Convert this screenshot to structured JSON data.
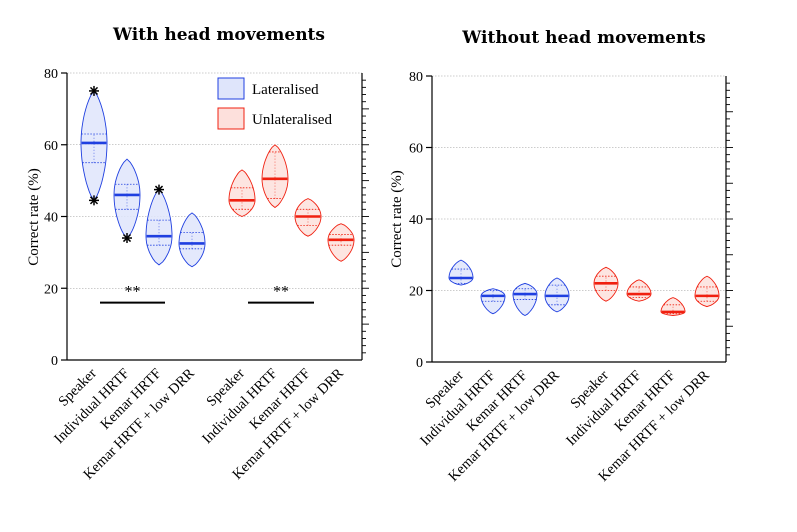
{
  "chart_data": [
    {
      "type": "violin",
      "title": "With head movements",
      "ylabel": "Correct rate (%)",
      "ylim": [
        0,
        80
      ],
      "yticks": [
        0,
        20,
        40,
        60,
        80
      ],
      "grid": "horizontal dotted",
      "legend": {
        "placement": "top-right",
        "entries": [
          "Lateralised",
          "Unlateralised"
        ]
      },
      "categories": [
        "Speaker",
        "Individual HRTF",
        "Kemar HRTF",
        "Kemar HRTF + low DRR",
        "Speaker",
        "Individual HRTF",
        "Kemar HRTF",
        "Kemar HRTF + low DRR"
      ],
      "series": [
        {
          "name": "Lateralised",
          "color": "#1f3fe0",
          "fill": "#dfe5fb",
          "groups": [
            {
              "median": 60.5,
              "q1": 55,
              "q3": 63,
              "min": 44.5,
              "max": 75,
              "outliers": [
                75,
                44.5
              ]
            },
            {
              "median": 46,
              "q1": 42,
              "q3": 49,
              "min": 34,
              "max": 56,
              "outliers": [
                34
              ]
            },
            {
              "median": 34.5,
              "q1": 32,
              "q3": 39,
              "min": 26.5,
              "max": 47.5,
              "outliers": [
                47.5
              ]
            },
            {
              "median": 32.5,
              "q1": 31,
              "q3": 35.5,
              "min": 26,
              "max": 41,
              "outliers": []
            }
          ]
        },
        {
          "name": "Unlateralised",
          "color": "#f02010",
          "fill": "#fde0dc",
          "groups": [
            {
              "median": 44.5,
              "q1": 42,
              "q3": 48,
              "min": 40,
              "max": 53,
              "outliers": []
            },
            {
              "median": 50.5,
              "q1": 45,
              "q3": 58,
              "min": 42.5,
              "max": 60,
              "outliers": []
            },
            {
              "median": 40,
              "q1": 37.5,
              "q3": 42,
              "min": 34.5,
              "max": 45,
              "outliers": []
            },
            {
              "median": 33.5,
              "q1": 32,
              "q3": 35,
              "min": 27.5,
              "max": 38,
              "outliers": []
            }
          ]
        }
      ],
      "annotations": [
        {
          "text": "**",
          "between": [
            "Speaker",
            "Kemar HRTF"
          ],
          "group": "Lateralised",
          "y": 16
        },
        {
          "text": "**",
          "between": [
            "Speaker",
            "Kemar HRTF"
          ],
          "group": "Unlateralised",
          "y": 16
        }
      ]
    },
    {
      "type": "violin",
      "title": "Without head movements",
      "ylabel": "Correct rate (%)",
      "ylim": [
        0,
        80
      ],
      "yticks": [
        0,
        20,
        40,
        60,
        80
      ],
      "grid": "horizontal dotted",
      "categories": [
        "Speaker",
        "Individual HRTF",
        "Kemar HRTF",
        "Kemar HRTF + low DRR",
        "Speaker",
        "Individual HRTF",
        "Kemar HRTF",
        "Kemar HRTF + low DRR"
      ],
      "series": [
        {
          "name": "Lateralised",
          "color": "#1f3fe0",
          "fill": "#dfe5fb",
          "groups": [
            {
              "median": 23.5,
              "q1": 22,
              "q3": 26,
              "min": 21.5,
              "max": 28.5,
              "outliers": []
            },
            {
              "median": 18.5,
              "q1": 17,
              "q3": 20,
              "min": 13.5,
              "max": 20.5,
              "outliers": []
            },
            {
              "median": 19,
              "q1": 17.5,
              "q3": 20.5,
              "min": 13,
              "max": 22,
              "outliers": []
            },
            {
              "median": 18.5,
              "q1": 16,
              "q3": 21.5,
              "min": 14,
              "max": 23.5,
              "outliers": []
            }
          ]
        },
        {
          "name": "Unlateralised",
          "color": "#f02010",
          "fill": "#fde0dc",
          "groups": [
            {
              "median": 22,
              "q1": 20,
              "q3": 24,
              "min": 17,
              "max": 26.5,
              "outliers": []
            },
            {
              "median": 19,
              "q1": 18,
              "q3": 21,
              "min": 17,
              "max": 23,
              "outliers": []
            },
            {
              "median": 14,
              "q1": 13.5,
              "q3": 16,
              "min": 13,
              "max": 18,
              "outliers": []
            },
            {
              "median": 18.5,
              "q1": 17,
              "q3": 21,
              "min": 15.5,
              "max": 24,
              "outliers": []
            }
          ]
        }
      ],
      "annotations": []
    }
  ]
}
